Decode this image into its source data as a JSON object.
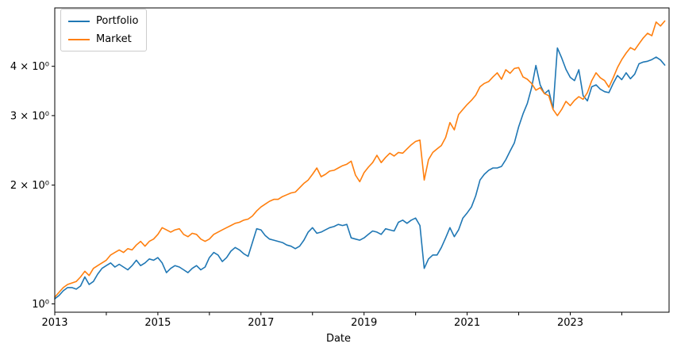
{
  "chart_data": {
    "type": "line",
    "title": "",
    "xlabel": "Date",
    "ylabel": "",
    "yscale": "log",
    "grid": false,
    "x_start_year": 2013,
    "x_step_months": 1,
    "xlim_years": [
      2013.0,
      2024.917
    ],
    "ylim": [
      0.95,
      5.63
    ],
    "x_ticks": [
      {
        "year": 2013,
        "label": "2013"
      },
      {
        "year": 2014,
        "label": ""
      },
      {
        "year": 2015,
        "label": "2015"
      },
      {
        "year": 2016,
        "label": ""
      },
      {
        "year": 2017,
        "label": "2017"
      },
      {
        "year": 2018,
        "label": ""
      },
      {
        "year": 2019,
        "label": "2019"
      },
      {
        "year": 2020,
        "label": ""
      },
      {
        "year": 2021,
        "label": "2021"
      },
      {
        "year": 2022,
        "label": ""
      },
      {
        "year": 2023,
        "label": "2023"
      },
      {
        "year": 2024,
        "label": ""
      }
    ],
    "y_ticks": [
      {
        "value": 1,
        "label": "10⁰"
      },
      {
        "value": 2,
        "label": "2 × 10⁰"
      },
      {
        "value": 3,
        "label": "3 × 10⁰"
      },
      {
        "value": 4,
        "label": "4 × 10⁰"
      }
    ],
    "legend": {
      "position": "upper left",
      "entries": [
        {
          "label": "Portfolio",
          "color": "#1f77b4"
        },
        {
          "label": "Market",
          "color": "#ff7f0e"
        }
      ]
    },
    "series": [
      {
        "name": "Portfolio",
        "color": "#1f77b4",
        "values": [
          1.03,
          1.05,
          1.08,
          1.1,
          1.1,
          1.09,
          1.11,
          1.17,
          1.12,
          1.14,
          1.19,
          1.23,
          1.25,
          1.27,
          1.24,
          1.26,
          1.24,
          1.22,
          1.25,
          1.29,
          1.25,
          1.27,
          1.3,
          1.29,
          1.31,
          1.27,
          1.2,
          1.23,
          1.25,
          1.24,
          1.22,
          1.2,
          1.23,
          1.25,
          1.22,
          1.24,
          1.31,
          1.35,
          1.33,
          1.28,
          1.31,
          1.36,
          1.39,
          1.37,
          1.34,
          1.32,
          1.43,
          1.55,
          1.54,
          1.49,
          1.46,
          1.45,
          1.44,
          1.43,
          1.41,
          1.4,
          1.38,
          1.4,
          1.45,
          1.52,
          1.56,
          1.51,
          1.52,
          1.54,
          1.56,
          1.57,
          1.59,
          1.58,
          1.59,
          1.47,
          1.46,
          1.45,
          1.47,
          1.5,
          1.53,
          1.52,
          1.5,
          1.55,
          1.54,
          1.53,
          1.61,
          1.63,
          1.6,
          1.63,
          1.65,
          1.58,
          1.23,
          1.3,
          1.33,
          1.33,
          1.39,
          1.47,
          1.56,
          1.48,
          1.54,
          1.65,
          1.7,
          1.76,
          1.88,
          2.06,
          2.13,
          2.18,
          2.21,
          2.21,
          2.23,
          2.32,
          2.44,
          2.56,
          2.81,
          3.03,
          3.22,
          3.53,
          4.02,
          3.59,
          3.41,
          3.48,
          3.12,
          4.45,
          4.2,
          3.93,
          3.75,
          3.68,
          3.92,
          3.37,
          3.27,
          3.55,
          3.59,
          3.5,
          3.45,
          3.43,
          3.62,
          3.79,
          3.7,
          3.85,
          3.72,
          3.82,
          4.06,
          4.1,
          4.12,
          4.16,
          4.22,
          4.15,
          4.03
        ]
      },
      {
        "name": "Market",
        "color": "#ff7f0e",
        "values": [
          1.04,
          1.07,
          1.1,
          1.12,
          1.13,
          1.14,
          1.17,
          1.21,
          1.18,
          1.23,
          1.25,
          1.27,
          1.29,
          1.33,
          1.35,
          1.37,
          1.35,
          1.38,
          1.37,
          1.41,
          1.44,
          1.4,
          1.44,
          1.46,
          1.5,
          1.56,
          1.54,
          1.52,
          1.54,
          1.55,
          1.5,
          1.48,
          1.51,
          1.5,
          1.46,
          1.44,
          1.46,
          1.5,
          1.52,
          1.54,
          1.56,
          1.58,
          1.6,
          1.61,
          1.63,
          1.64,
          1.67,
          1.72,
          1.76,
          1.79,
          1.82,
          1.84,
          1.84,
          1.87,
          1.89,
          1.91,
          1.92,
          1.97,
          2.02,
          2.06,
          2.13,
          2.21,
          2.1,
          2.13,
          2.17,
          2.18,
          2.21,
          2.24,
          2.26,
          2.3,
          2.12,
          2.04,
          2.15,
          2.22,
          2.28,
          2.38,
          2.28,
          2.35,
          2.41,
          2.37,
          2.42,
          2.41,
          2.47,
          2.53,
          2.58,
          2.6,
          2.06,
          2.32,
          2.42,
          2.47,
          2.52,
          2.64,
          2.88,
          2.76,
          3.02,
          3.11,
          3.2,
          3.28,
          3.38,
          3.55,
          3.62,
          3.66,
          3.76,
          3.85,
          3.71,
          3.92,
          3.84,
          3.95,
          3.97,
          3.76,
          3.71,
          3.62,
          3.48,
          3.53,
          3.41,
          3.37,
          3.11,
          3.0,
          3.11,
          3.26,
          3.18,
          3.28,
          3.35,
          3.3,
          3.43,
          3.68,
          3.85,
          3.74,
          3.68,
          3.54,
          3.74,
          3.97,
          4.16,
          4.32,
          4.46,
          4.4,
          4.56,
          4.72,
          4.85,
          4.78,
          5.18,
          5.06,
          5.21
        ]
      }
    ]
  }
}
